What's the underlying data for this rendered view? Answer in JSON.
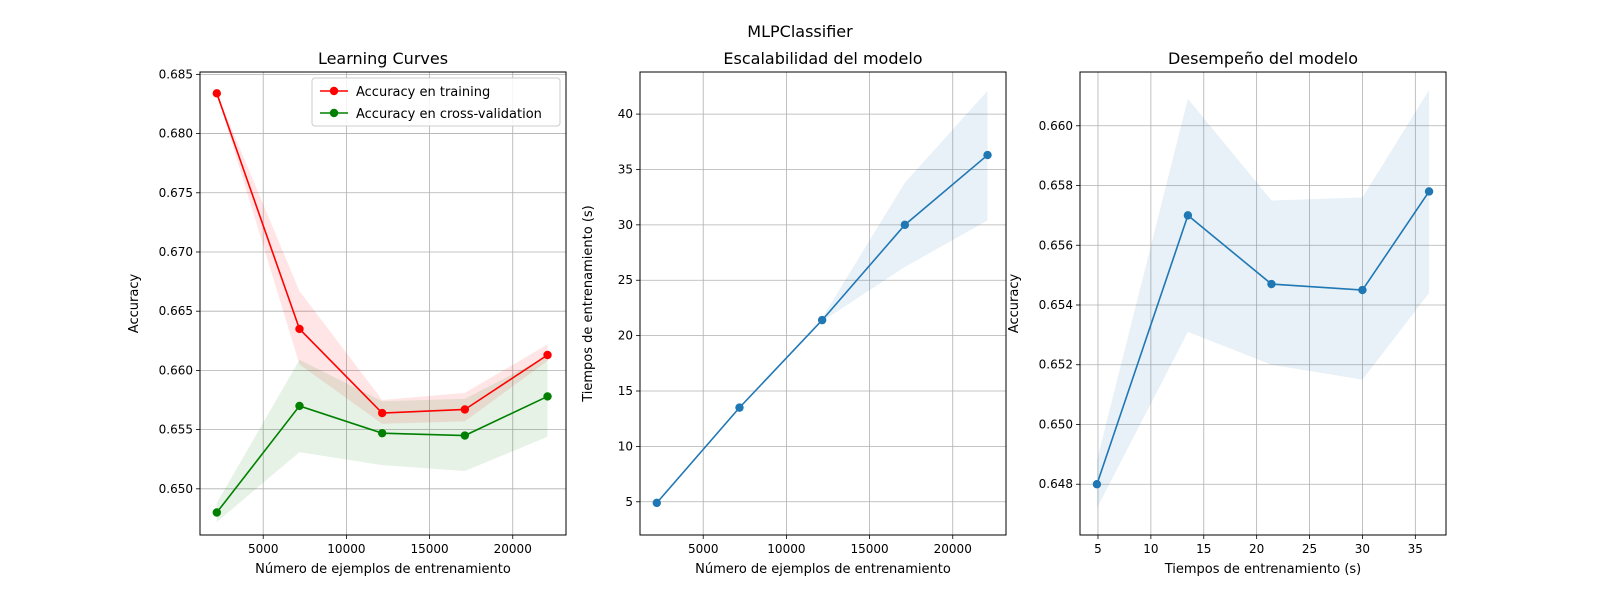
{
  "figure": {
    "suptitle": "MLPClassifier"
  },
  "chart_data": [
    {
      "type": "line",
      "title": "Learning Curves",
      "xlabel": "Número de ejemplos de entrenamiento",
      "ylabel": "Accuracy",
      "xlim": [
        1200,
        23200
      ],
      "ylim": [
        0.6461,
        0.6852
      ],
      "xticks": [
        5000,
        10000,
        15000,
        20000
      ],
      "xtick_labels": [
        "5000",
        "10000",
        "15000",
        "20000"
      ],
      "yticks": [
        0.65,
        0.655,
        0.66,
        0.665,
        0.67,
        0.675,
        0.68,
        0.685
      ],
      "ytick_labels": [
        "0.650",
        "0.655",
        "0.660",
        "0.665",
        "0.670",
        "0.675",
        "0.680",
        "0.685"
      ],
      "grid": true,
      "legend_position": "upper-right",
      "x": [
        2210,
        7180,
        12150,
        17120,
        22090
      ],
      "series": [
        {
          "name": "Accuracy en training",
          "color": "#ff0000",
          "values": [
            0.6834,
            0.6635,
            0.6564,
            0.6567,
            0.6613
          ],
          "band_lower": [
            0.6834,
            0.6605,
            0.6555,
            0.6557,
            0.6608
          ],
          "band_upper": [
            0.6834,
            0.6667,
            0.6575,
            0.6581,
            0.6622
          ]
        },
        {
          "name": "Accuracy en cross-validation",
          "color": "#008000",
          "values": [
            0.648,
            0.657,
            0.6547,
            0.6545,
            0.6578
          ],
          "band_lower": [
            0.6472,
            0.6531,
            0.652,
            0.6515,
            0.6544
          ],
          "band_upper": [
            0.6488,
            0.6609,
            0.6574,
            0.6576,
            0.6612
          ]
        }
      ]
    },
    {
      "type": "line",
      "title": "Escalabilidad del modelo",
      "xlabel": "Número de ejemplos de entrenamiento",
      "ylabel": "Tiempos de entrenamiento (s)",
      "xlim": [
        1200,
        23200
      ],
      "ylim": [
        2.0,
        43.8
      ],
      "xticks": [
        5000,
        10000,
        15000,
        20000
      ],
      "xtick_labels": [
        "5000",
        "10000",
        "15000",
        "20000"
      ],
      "yticks": [
        5,
        10,
        15,
        20,
        25,
        30,
        35,
        40
      ],
      "ytick_labels": [
        "5",
        "10",
        "15",
        "20",
        "25",
        "30",
        "35",
        "40"
      ],
      "grid": true,
      "x": [
        2210,
        7180,
        12150,
        17120,
        22090
      ],
      "series": [
        {
          "color": "#1f77b4",
          "values": [
            4.9,
            13.5,
            21.4,
            30.0,
            36.3
          ],
          "band_lower": [
            4.9,
            13.5,
            21.3,
            26.2,
            30.4
          ],
          "band_upper": [
            4.9,
            13.5,
            21.6,
            33.8,
            42.1
          ]
        }
      ]
    },
    {
      "type": "line",
      "title": "Desempeño del modelo",
      "xlabel": "Tiempos de entrenamiento (s)",
      "ylabel": "Accuracy",
      "xlim": [
        3.3,
        37.9
      ],
      "ylim": [
        0.6463,
        0.6618
      ],
      "xticks": [
        5,
        10,
        15,
        20,
        25,
        30,
        35
      ],
      "xtick_labels": [
        "5",
        "10",
        "15",
        "20",
        "25",
        "30",
        "35"
      ],
      "yticks": [
        0.648,
        0.65,
        0.652,
        0.654,
        0.656,
        0.658,
        0.66
      ],
      "ytick_labels": [
        "0.648",
        "0.650",
        "0.652",
        "0.654",
        "0.656",
        "0.658",
        "0.660"
      ],
      "grid": true,
      "x": [
        4.9,
        13.5,
        21.4,
        30.0,
        36.3
      ],
      "series": [
        {
          "color": "#1f77b4",
          "values": [
            0.648,
            0.657,
            0.6547,
            0.6545,
            0.6578
          ],
          "band_lower": [
            0.6472,
            0.6531,
            0.652,
            0.6515,
            0.6544
          ],
          "band_upper": [
            0.6488,
            0.6609,
            0.6575,
            0.6576,
            0.6612
          ]
        }
      ]
    }
  ]
}
